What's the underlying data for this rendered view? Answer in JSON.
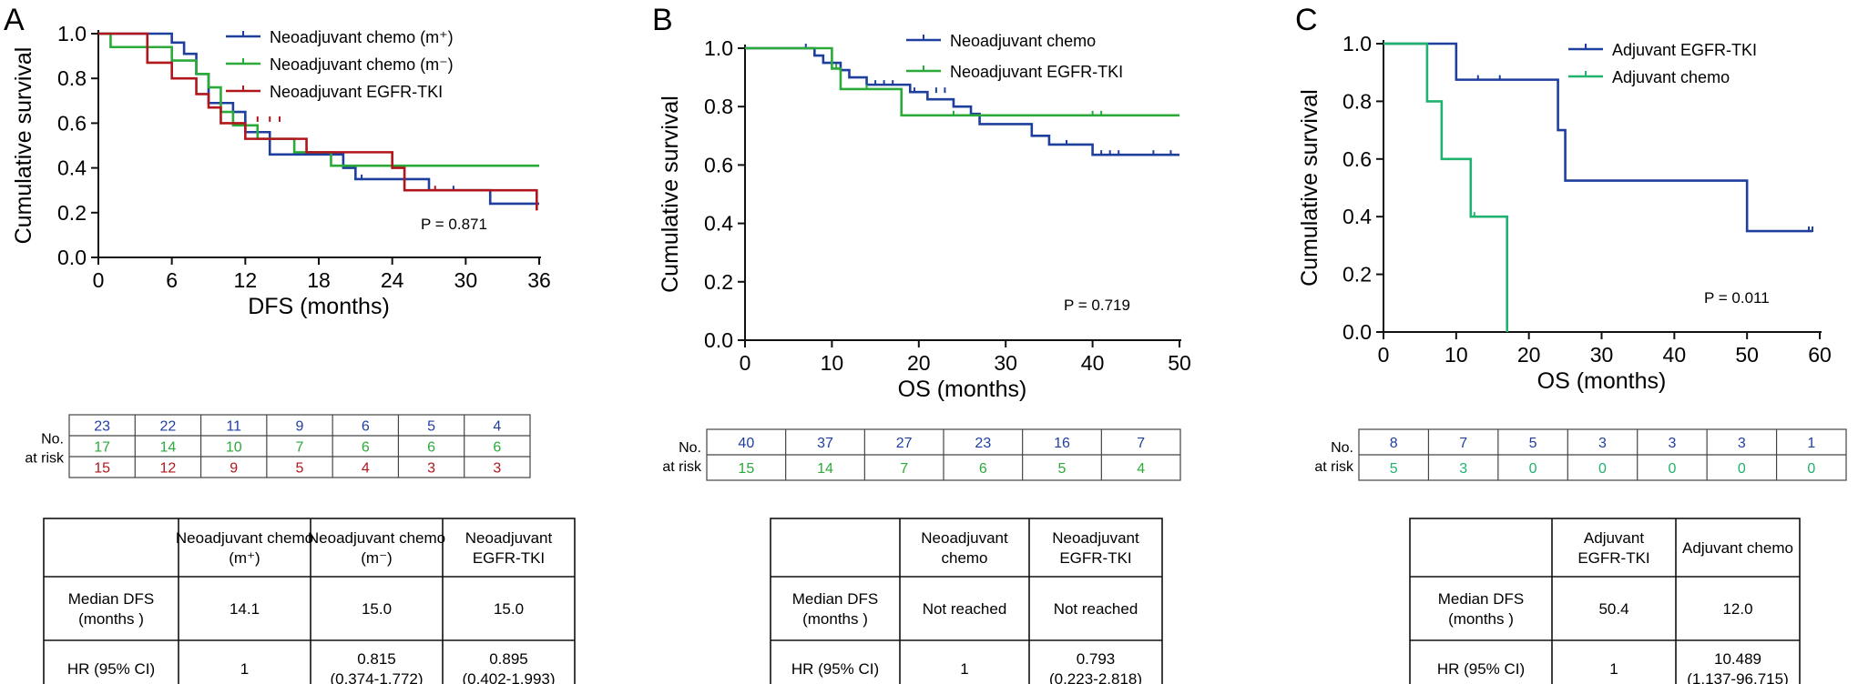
{
  "colors": {
    "blue": "#1F3F9E",
    "green": "#2BAA3A",
    "red": "#B0161C",
    "teal": "#21B26F"
  },
  "chart_data": [
    {
      "panel": "A",
      "type": "line",
      "xlabel": "DFS (months)",
      "ylabel": "Cumulative survival",
      "xticks": [
        0,
        6,
        12,
        18,
        24,
        30,
        36
      ],
      "yticks": [
        0.0,
        0.2,
        0.4,
        0.6,
        0.8,
        1.0
      ],
      "ytick_labels": [
        "0.0",
        "0.2",
        "0.4",
        "0.6",
        "0.8",
        "1.0"
      ],
      "xlim": [
        0,
        36
      ],
      "ylim": [
        0,
        1.0
      ],
      "pvalue": "P = 0.871",
      "series": [
        {
          "name": "Neoadjuvant chemo (m⁺)",
          "color": "#1F3F9E",
          "steps": [
            [
              0,
              1.0
            ],
            [
              6,
              0.96
            ],
            [
              7,
              0.91
            ],
            [
              8,
              0.82
            ],
            [
              9,
              0.69
            ],
            [
              11,
              0.65
            ],
            [
              12,
              0.56
            ],
            [
              14,
              0.46
            ],
            [
              20,
              0.4
            ],
            [
              21,
              0.35
            ],
            [
              27,
              0.3
            ],
            [
              32,
              0.24
            ],
            [
              36,
              0.24
            ]
          ],
          "censors": [
            [
              21.5,
              0.35
            ],
            [
              29,
              0.3
            ]
          ]
        },
        {
          "name": "Neoadjuvant chemo (m⁻)",
          "color": "#2BAA3A",
          "steps": [
            [
              0,
              1.0
            ],
            [
              1,
              0.94
            ],
            [
              6,
              0.88
            ],
            [
              8,
              0.82
            ],
            [
              9,
              0.76
            ],
            [
              10,
              0.65
            ],
            [
              11,
              0.59
            ],
            [
              13,
              0.53
            ],
            [
              16,
              0.47
            ],
            [
              19,
              0.41
            ],
            [
              36,
              0.41
            ]
          ],
          "censors": [
            [
              17,
              0.47
            ]
          ]
        },
        {
          "name": "Neoadjuvant EGFR-TKI",
          "color": "#B0161C",
          "steps": [
            [
              0,
              1.0
            ],
            [
              4,
              0.87
            ],
            [
              6,
              0.8
            ],
            [
              8,
              0.73
            ],
            [
              9,
              0.67
            ],
            [
              10,
              0.6
            ],
            [
              12,
              0.53
            ],
            [
              17,
              0.47
            ],
            [
              24,
              0.4
            ],
            [
              25,
              0.3
            ],
            [
              35.8,
              0.3
            ],
            [
              35.8,
              0.21
            ]
          ],
          "censors": [
            [
              13,
              0.61
            ],
            [
              14,
              0.61
            ],
            [
              14.8,
              0.61
            ],
            [
              27.5,
              0.3
            ]
          ]
        }
      ],
      "risk_table": {
        "label1": "No.",
        "label2": "at risk",
        "rows": [
          [
            "23",
            "22",
            "11",
            "9",
            "6",
            "5",
            "4"
          ],
          [
            "17",
            "14",
            "10",
            "7",
            "6",
            "6",
            "6"
          ],
          [
            "15",
            "12",
            "9",
            "5",
            "4",
            "3",
            "3"
          ]
        ]
      },
      "summary_table": {
        "headers": [
          "",
          "Neoadjuvant chemo (m⁺)",
          "Neoadjuvant chemo (m⁻)",
          "Neoadjuvant EGFR-TKI"
        ],
        "rows": [
          [
            "Median DFS (months )",
            "14.1",
            "15.0",
            "15.0"
          ],
          [
            "HR (95% CI)",
            "1",
            "0.815 (0.374-1.772)",
            "0.895 (0.402-1.993)"
          ]
        ]
      }
    },
    {
      "panel": "B",
      "type": "line",
      "xlabel": "OS (months)",
      "ylabel": "Cumulative survival",
      "xticks": [
        0,
        10,
        20,
        30,
        40,
        50
      ],
      "yticks": [
        0.0,
        0.2,
        0.4,
        0.6,
        0.8,
        1.0
      ],
      "ytick_labels": [
        "0.0",
        "0.2",
        "0.4",
        "0.6",
        "0.8",
        "1.0"
      ],
      "xlim": [
        0,
        50
      ],
      "ylim": [
        0,
        1.0
      ],
      "pvalue": "P = 0.719",
      "series": [
        {
          "name": "Neoadjuvant chemo",
          "color": "#1F3F9E",
          "steps": [
            [
              0,
              1.0
            ],
            [
              8,
              0.975
            ],
            [
              9,
              0.95
            ],
            [
              11,
              0.925
            ],
            [
              12,
              0.9
            ],
            [
              14,
              0.875
            ],
            [
              19,
              0.85
            ],
            [
              21,
              0.825
            ],
            [
              24,
              0.8
            ],
            [
              26,
              0.775
            ],
            [
              27,
              0.74
            ],
            [
              33,
              0.7
            ],
            [
              35,
              0.67
            ],
            [
              40,
              0.635
            ],
            [
              50,
              0.635
            ]
          ],
          "censors": [
            [
              7,
              1.0
            ],
            [
              15,
              0.875
            ],
            [
              16,
              0.875
            ],
            [
              17,
              0.875
            ],
            [
              19.5,
              0.85
            ],
            [
              22,
              0.85
            ],
            [
              23,
              0.85
            ],
            [
              37,
              0.67
            ],
            [
              41,
              0.635
            ],
            [
              42,
              0.635
            ],
            [
              43,
              0.635
            ],
            [
              47,
              0.635
            ],
            [
              49,
              0.635
            ]
          ]
        },
        {
          "name": "Neoadjuvant EGFR-TKI",
          "color": "#2BAA3A",
          "steps": [
            [
              0,
              1.0
            ],
            [
              10,
              0.93
            ],
            [
              11,
              0.86
            ],
            [
              18,
              0.77
            ],
            [
              50,
              0.77
            ]
          ],
          "censors": [
            [
              10.5,
              0.93
            ],
            [
              14,
              0.86
            ],
            [
              24,
              0.77
            ],
            [
              40,
              0.77
            ],
            [
              41,
              0.77
            ]
          ]
        }
      ],
      "risk_table": {
        "label1": "No.",
        "label2": "at risk",
        "rows": [
          [
            "40",
            "37",
            "27",
            "23",
            "16",
            "7"
          ],
          [
            "15",
            "14",
            "7",
            "6",
            "5",
            "4"
          ]
        ]
      },
      "summary_table": {
        "headers": [
          "",
          "Neoadjuvant chemo",
          "Neoadjuvant EGFR-TKI"
        ],
        "rows": [
          [
            "Median DFS (months )",
            "Not reached",
            "Not reached"
          ],
          [
            "HR (95% CI)",
            "1",
            "0.793 (0.223-2.818)"
          ]
        ]
      }
    },
    {
      "panel": "C",
      "type": "line",
      "xlabel": "OS (months)",
      "ylabel": "Cumulative survival",
      "xticks": [
        0,
        10,
        20,
        30,
        40,
        50,
        60
      ],
      "yticks": [
        0.0,
        0.2,
        0.4,
        0.6,
        0.8,
        1.0
      ],
      "ytick_labels": [
        "0.0",
        "0.2",
        "0.4",
        "0.6",
        "0.8",
        "1.0"
      ],
      "xlim": [
        0,
        60
      ],
      "ylim": [
        0,
        1.0
      ],
      "pvalue": "P = 0.011",
      "series": [
        {
          "name": "Adjuvant EGFR-TKI",
          "color": "#1F3F9E",
          "steps": [
            [
              0,
              1.0
            ],
            [
              10,
              0.875
            ],
            [
              24,
              0.7
            ],
            [
              25,
              0.525
            ],
            [
              50,
              0.35
            ],
            [
              59,
              0.35
            ]
          ],
          "censors": [
            [
              13,
              0.875
            ],
            [
              16,
              0.875
            ],
            [
              58.5,
              0.35
            ],
            [
              59,
              0.35
            ]
          ]
        },
        {
          "name": "Adjuvant chemo",
          "color": "#21B26F",
          "steps": [
            [
              0,
              1.0
            ],
            [
              6,
              0.8
            ],
            [
              8,
              0.6
            ],
            [
              12,
              0.4
            ],
            [
              17,
              0.0
            ]
          ],
          "censors": [
            [
              12.5,
              0.4
            ]
          ]
        }
      ],
      "risk_table": {
        "label1": "No.",
        "label2": "at risk",
        "rows": [
          [
            "8",
            "7",
            "5",
            "3",
            "3",
            "3",
            "1"
          ],
          [
            "5",
            "3",
            "0",
            "0",
            "0",
            "0",
            "0"
          ]
        ]
      },
      "summary_table": {
        "headers": [
          "",
          "Adjuvant EGFR-TKI",
          "Adjuvant chemo"
        ],
        "rows": [
          [
            "Median DFS (months )",
            "50.4",
            "12.0"
          ],
          [
            "HR (95% CI)",
            "1",
            "10.489 (1.137-96.715)"
          ]
        ]
      }
    }
  ]
}
